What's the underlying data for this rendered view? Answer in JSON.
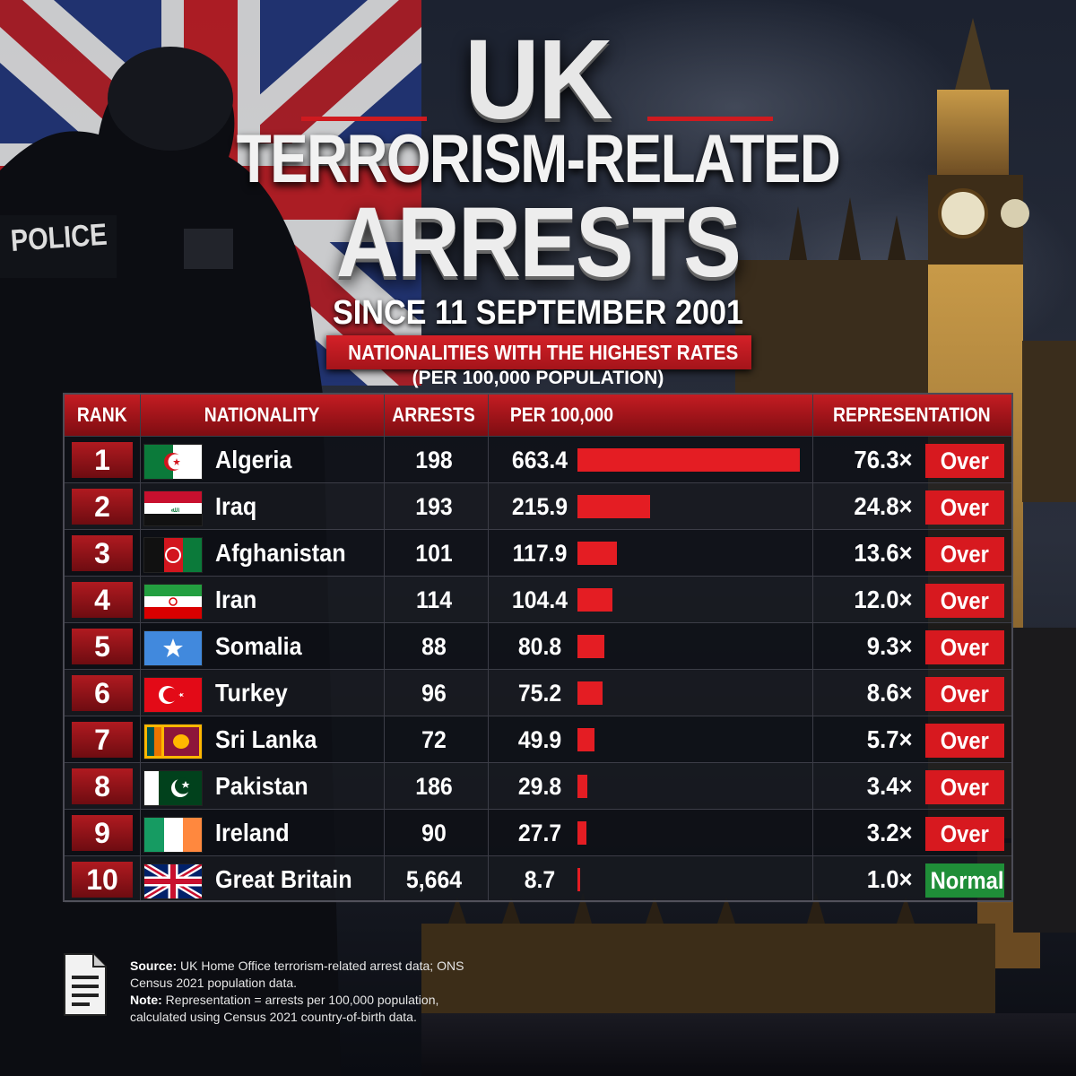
{
  "header": {
    "title_line1": "UK",
    "title_line2": "TERRORISM-RELATED",
    "title_line3": "ARRESTS",
    "since": "SINCE 11 SEPTEMBER 2001",
    "banner": "NATIONALITIES WITH THE HIGHEST RATES",
    "subtitle": "(PER 100,000 POPULATION)",
    "police_patch": "POLICE"
  },
  "table": {
    "headers": {
      "rank": "RANK",
      "nationality": "NATIONALITY",
      "arrests": "ARRESTS",
      "per": "PER 100,000",
      "representation": "REPRESENTATION"
    }
  },
  "chart_data": {
    "type": "table",
    "columns": [
      "RANK",
      "NATIONALITY",
      "ARRESTS",
      "PER 100,000",
      "REPRESENTATION"
    ],
    "rows": [
      {
        "rank": "1",
        "nationality": "Algeria",
        "flag": "algeria-flag-icon",
        "arrests": "198",
        "per": "663.4",
        "per_value": 663.4,
        "rep": "76.3×",
        "status": "Over"
      },
      {
        "rank": "2",
        "nationality": "Iraq",
        "flag": "iraq-flag-icon",
        "arrests": "193",
        "per": "215.9",
        "per_value": 215.9,
        "rep": "24.8×",
        "status": "Over"
      },
      {
        "rank": "3",
        "nationality": "Afghanistan",
        "flag": "afghanistan-flag-icon",
        "arrests": "101",
        "per": "117.9",
        "per_value": 117.9,
        "rep": "13.6×",
        "status": "Over"
      },
      {
        "rank": "4",
        "nationality": "Iran",
        "flag": "iran-flag-icon",
        "arrests": "114",
        "per": "104.4",
        "per_value": 104.4,
        "rep": "12.0×",
        "status": "Over"
      },
      {
        "rank": "5",
        "nationality": "Somalia",
        "flag": "somalia-flag-icon",
        "arrests": "88",
        "per": "80.8",
        "per_value": 80.8,
        "rep": "9.3×",
        "status": "Over"
      },
      {
        "rank": "6",
        "nationality": "Turkey",
        "flag": "turkey-flag-icon",
        "arrests": "96",
        "per": "75.2",
        "per_value": 75.2,
        "rep": "8.6×",
        "status": "Over"
      },
      {
        "rank": "7",
        "nationality": "Sri Lanka",
        "flag": "sri-lanka-flag-icon",
        "arrests": "72",
        "per": "49.9",
        "per_value": 49.9,
        "rep": "5.7×",
        "status": "Over"
      },
      {
        "rank": "8",
        "nationality": "Pakistan",
        "flag": "pakistan-flag-icon",
        "arrests": "186",
        "per": "29.8",
        "per_value": 29.8,
        "rep": "3.4×",
        "status": "Over"
      },
      {
        "rank": "9",
        "nationality": "Ireland",
        "flag": "ireland-flag-icon",
        "arrests": "90",
        "per": "27.7",
        "per_value": 27.7,
        "rep": "3.2×",
        "status": "Over"
      },
      {
        "rank": "10",
        "nationality": "Great Britain",
        "flag": "union-jack-flag-icon",
        "arrests": "5,664",
        "per": "8.7",
        "per_value": 8.7,
        "rep": "1.0×",
        "status": "Normal"
      }
    ],
    "bar_max": 663.4,
    "colors": {
      "bar": "#e41d23",
      "over": "#d7191f",
      "normal": "#1f8e38",
      "header": "#c41c22"
    }
  },
  "footer": {
    "source_label": "Source:",
    "source_text": " UK Home Office terrorism-related arrest data; ONS Census 2021 population data.",
    "note_label": "Note:",
    "note_text": " Representation = arrests per 100,000 population, calculated using Census 2021 country-of-birth data."
  }
}
